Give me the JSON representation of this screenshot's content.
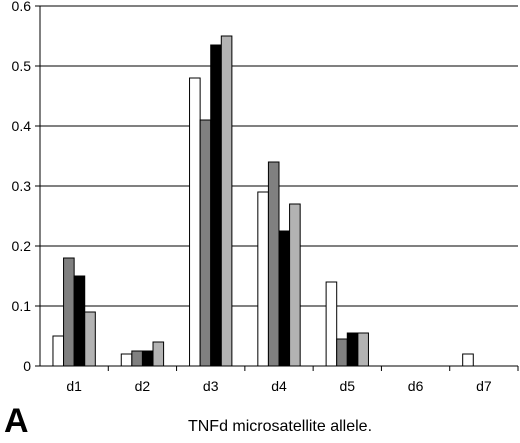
{
  "panel_letter": "A",
  "chart_data": {
    "type": "bar",
    "categories": [
      "d1",
      "d2",
      "d3",
      "d4",
      "d5",
      "d6",
      "d7"
    ],
    "series": [
      {
        "values": [
          0.05,
          0.02,
          0.48,
          0.29,
          0.14,
          0.0,
          0.02
        ],
        "color": "#ffffff"
      },
      {
        "values": [
          0.18,
          0.025,
          0.41,
          0.34,
          0.045,
          0.0,
          0.0
        ],
        "color": "#808080"
      },
      {
        "values": [
          0.15,
          0.025,
          0.535,
          0.225,
          0.055,
          0.0,
          0.0
        ],
        "color": "#000000"
      },
      {
        "values": [
          0.09,
          0.04,
          0.55,
          0.27,
          0.055,
          0.0,
          0.0
        ],
        "color": "#b3b3b3"
      }
    ],
    "xlabel": "TNFd microsatellite allele.",
    "ylabel": "",
    "ylim": [
      0,
      0.6
    ],
    "yticks": [
      "0",
      "0.1",
      "0.2",
      "0.3",
      "0.4",
      "0.5",
      "0.6"
    ],
    "grid": true
  }
}
